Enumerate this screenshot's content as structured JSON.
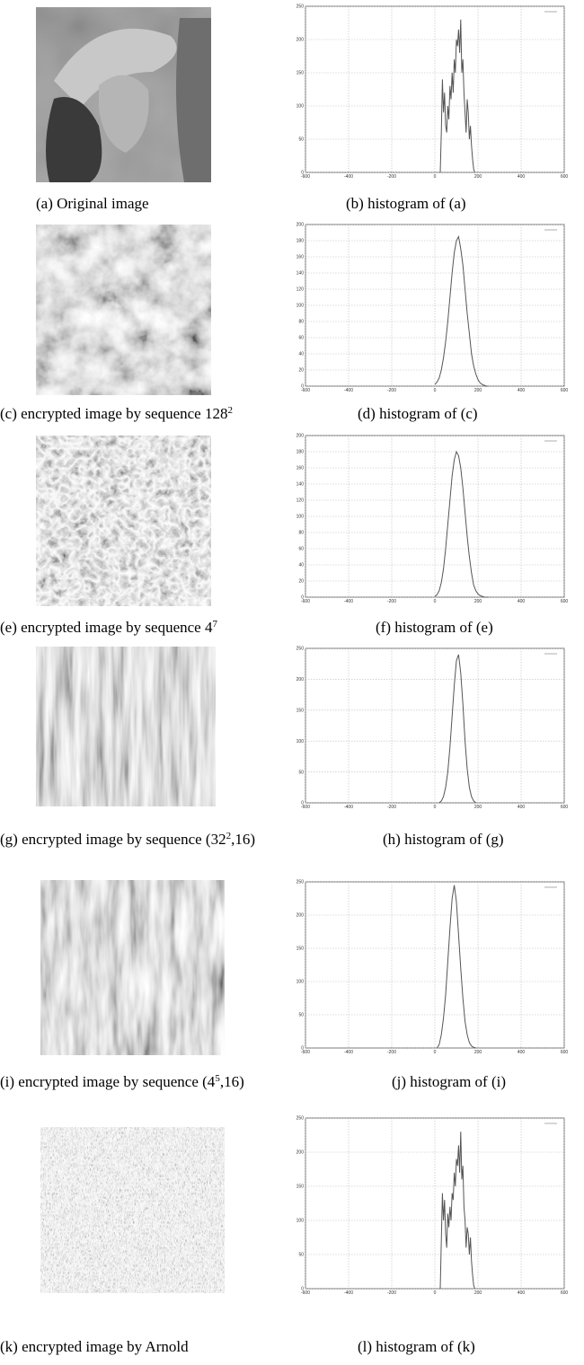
{
  "images": [
    {
      "caption": [
        "(a) Original image"
      ]
    },
    {
      "caption": [
        "(c) encrypted image by sequence 128",
        "2"
      ]
    },
    {
      "caption": [
        "(e) encrypted image by sequence 4",
        "7"
      ]
    },
    {
      "caption": [
        "(g) encrypted image by sequence (32",
        "2",
        ",16)"
      ]
    },
    {
      "caption": [
        "(i) encrypted image by sequence (4",
        "5",
        ",16)"
      ]
    },
    {
      "caption": [
        "(k) encrypted image by Arnold"
      ]
    }
  ],
  "chart_data": [
    {
      "type": "line",
      "caption": "(b) histogram of (a)",
      "xlim": [
        -600,
        600
      ],
      "xticks": [
        -600,
        -400,
        -200,
        0,
        200,
        400,
        600
      ],
      "ylim": [
        0,
        250
      ],
      "yticks": [
        0,
        50,
        100,
        150,
        200,
        250
      ],
      "grid": true,
      "x": [
        25,
        30,
        35,
        40,
        45,
        50,
        55,
        60,
        65,
        70,
        75,
        80,
        85,
        90,
        95,
        100,
        105,
        110,
        115,
        120,
        125,
        130,
        135,
        140,
        145,
        150,
        155,
        160,
        165,
        170,
        175,
        180,
        185
      ],
      "series": [
        {
          "color": "#555555",
          "values": [
            0,
            60,
            140,
            90,
            120,
            70,
            60,
            100,
            80,
            130,
            110,
            150,
            120,
            170,
            150,
            200,
            190,
            215,
            180,
            230,
            150,
            170,
            120,
            90,
            60,
            110,
            90,
            50,
            70,
            40,
            20,
            5,
            0
          ]
        }
      ]
    },
    {
      "type": "line",
      "caption": "(d) histogram of (c)",
      "xlim": [
        -600,
        600
      ],
      "xticks": [
        -600,
        -400,
        -200,
        0,
        200,
        400,
        600
      ],
      "ylim": [
        0,
        200
      ],
      "yticks": [
        0,
        20,
        40,
        60,
        80,
        100,
        120,
        140,
        160,
        180,
        200
      ],
      "grid": true,
      "x": [
        0,
        10,
        20,
        30,
        40,
        50,
        60,
        70,
        80,
        90,
        100,
        110,
        120,
        130,
        140,
        150,
        160,
        170,
        180,
        190,
        200,
        210,
        220,
        230,
        240,
        250
      ],
      "series": [
        {
          "color": "#555555",
          "values": [
            2,
            5,
            10,
            20,
            35,
            55,
            80,
            110,
            140,
            165,
            180,
            185,
            170,
            150,
            120,
            90,
            65,
            40,
            25,
            15,
            8,
            4,
            2,
            1,
            0,
            0
          ]
        }
      ]
    },
    {
      "type": "line",
      "caption": "(f) histogram of (e)",
      "xlim": [
        -600,
        600
      ],
      "xticks": [
        -600,
        -400,
        -200,
        0,
        200,
        400,
        600
      ],
      "ylim": [
        0,
        200
      ],
      "yticks": [
        0,
        20,
        40,
        60,
        80,
        100,
        120,
        140,
        160,
        180,
        200
      ],
      "grid": true,
      "x": [
        0,
        10,
        20,
        30,
        40,
        50,
        60,
        70,
        80,
        90,
        100,
        110,
        120,
        130,
        140,
        150,
        160,
        170,
        180,
        190,
        200,
        210,
        220,
        230,
        240,
        250
      ],
      "series": [
        {
          "color": "#555555",
          "values": [
            1,
            3,
            8,
            18,
            35,
            60,
            90,
            120,
            150,
            170,
            180,
            175,
            160,
            135,
            105,
            75,
            50,
            30,
            15,
            8,
            4,
            2,
            1,
            0,
            0,
            0
          ]
        }
      ]
    },
    {
      "type": "line",
      "caption": "(h) histogram of (g)",
      "xlim": [
        -600,
        600
      ],
      "xticks": [
        -600,
        -400,
        -200,
        0,
        200,
        400,
        600
      ],
      "ylim": [
        0,
        250
      ],
      "yticks": [
        0,
        50,
        100,
        150,
        200,
        250
      ],
      "grid": true,
      "x": [
        20,
        30,
        40,
        50,
        60,
        70,
        80,
        90,
        100,
        110,
        120,
        130,
        140,
        150,
        160,
        170,
        180,
        190
      ],
      "series": [
        {
          "color": "#555555",
          "values": [
            0,
            3,
            10,
            25,
            50,
            90,
            140,
            190,
            230,
            240,
            210,
            160,
            100,
            55,
            25,
            10,
            3,
            0
          ]
        }
      ]
    },
    {
      "type": "line",
      "caption": "(j) histogram of (i)",
      "xlim": [
        -600,
        600
      ],
      "xticks": [
        -600,
        -400,
        -200,
        0,
        200,
        400,
        600
      ],
      "ylim": [
        0,
        250
      ],
      "yticks": [
        0,
        50,
        100,
        150,
        200,
        250
      ],
      "grid": true,
      "x": [
        10,
        20,
        30,
        40,
        50,
        60,
        70,
        80,
        90,
        100,
        110,
        120,
        130,
        140,
        150,
        160,
        170,
        180,
        190
      ],
      "series": [
        {
          "color": "#555555",
          "values": [
            0,
            5,
            20,
            45,
            80,
            130,
            180,
            225,
            245,
            220,
            170,
            120,
            75,
            40,
            20,
            8,
            3,
            1,
            0
          ]
        }
      ]
    },
    {
      "type": "line",
      "caption": "(l) histogram of (k)",
      "xlim": [
        -600,
        600
      ],
      "xticks": [
        -600,
        -400,
        -200,
        0,
        200,
        400,
        600
      ],
      "ylim": [
        0,
        250
      ],
      "yticks": [
        0,
        50,
        100,
        150,
        200,
        250
      ],
      "grid": true,
      "x": [
        25,
        30,
        35,
        40,
        45,
        50,
        55,
        60,
        65,
        70,
        75,
        80,
        85,
        90,
        95,
        100,
        105,
        110,
        115,
        120,
        125,
        130,
        135,
        140,
        145,
        150,
        155,
        160,
        165,
        170,
        175,
        180,
        185
      ],
      "series": [
        {
          "color": "#555555",
          "values": [
            0,
            70,
            140,
            100,
            130,
            80,
            60,
            110,
            90,
            120,
            100,
            140,
            130,
            170,
            150,
            190,
            180,
            210,
            170,
            230,
            160,
            180,
            120,
            100,
            60,
            90,
            80,
            50,
            75,
            40,
            20,
            5,
            0
          ]
        }
      ]
    }
  ]
}
